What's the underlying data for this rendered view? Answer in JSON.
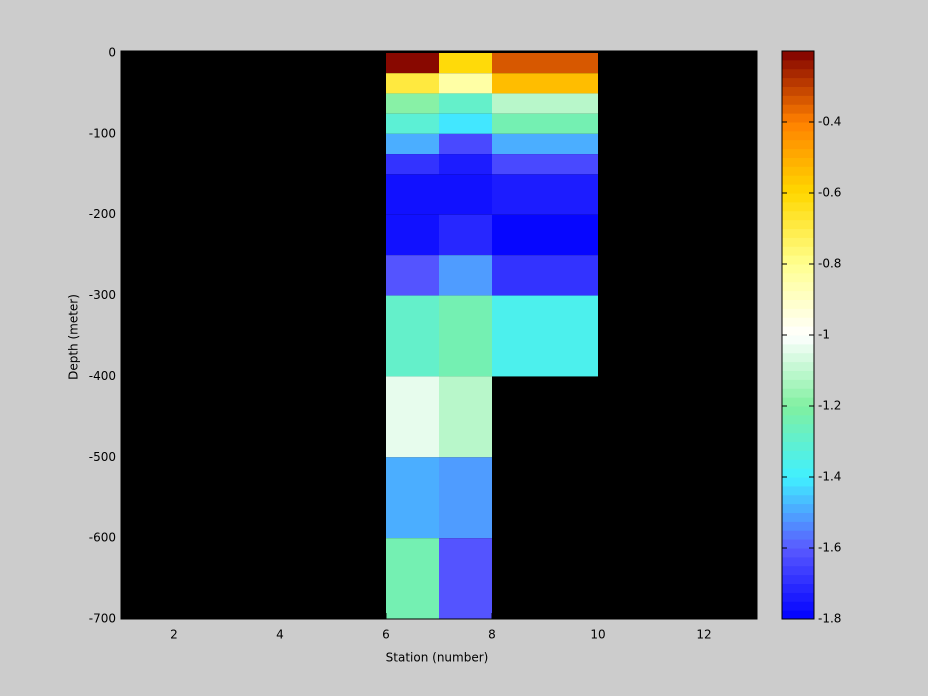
{
  "chart_data": {
    "type": "heatmap",
    "xlabel": "Station (number)",
    "ylabel": "Depth (meter)",
    "xlim": [
      1,
      13
    ],
    "ylim": [
      -700,
      0
    ],
    "xticks": [
      2,
      4,
      6,
      8,
      10,
      12
    ],
    "yticks": [
      0,
      -100,
      -200,
      -300,
      -400,
      -500,
      -600,
      -700
    ],
    "x_edges": [
      6,
      7,
      8,
      10
    ],
    "y_edges": [
      0,
      -25,
      -50,
      -75,
      -100,
      -125,
      -150,
      -200,
      -250,
      -300,
      -400,
      -500,
      -600,
      -700
    ],
    "values": [
      [
        -0.22,
        -0.62,
        -0.35
      ],
      [
        -0.7,
        -0.85,
        -0.55
      ],
      [
        -1.2,
        -1.3,
        -1.1
      ],
      [
        -1.32,
        -1.42,
        -1.25
      ],
      [
        -1.5,
        -1.65,
        -1.48
      ],
      [
        -1.7,
        -1.75,
        -1.65
      ],
      [
        -1.77,
        -1.77,
        -1.75
      ],
      [
        -1.77,
        -1.72,
        -1.8
      ],
      [
        -1.6,
        -1.52,
        -1.68
      ],
      [
        -1.3,
        -1.25,
        -1.35
      ],
      [
        -1.05,
        -1.1,
        null
      ],
      [
        -1.5,
        -1.52,
        null
      ],
      [
        -1.25,
        -1.62,
        null
      ]
    ],
    "background": "#000000",
    "clim": [
      -1.8,
      -0.2
    ],
    "colorbar_ticks": [
      -1.8,
      -1.6,
      -1.4,
      -1.2,
      -1,
      -0.8,
      -0.6,
      -0.4
    ],
    "colormap": [
      "#0000ff",
      "#5a5aff",
      "#40f0ff",
      "#80f0a0",
      "#ffffff",
      "#ffff90",
      "#ffd800",
      "#ff8000",
      "#800000"
    ],
    "colormap_levels": 64
  }
}
